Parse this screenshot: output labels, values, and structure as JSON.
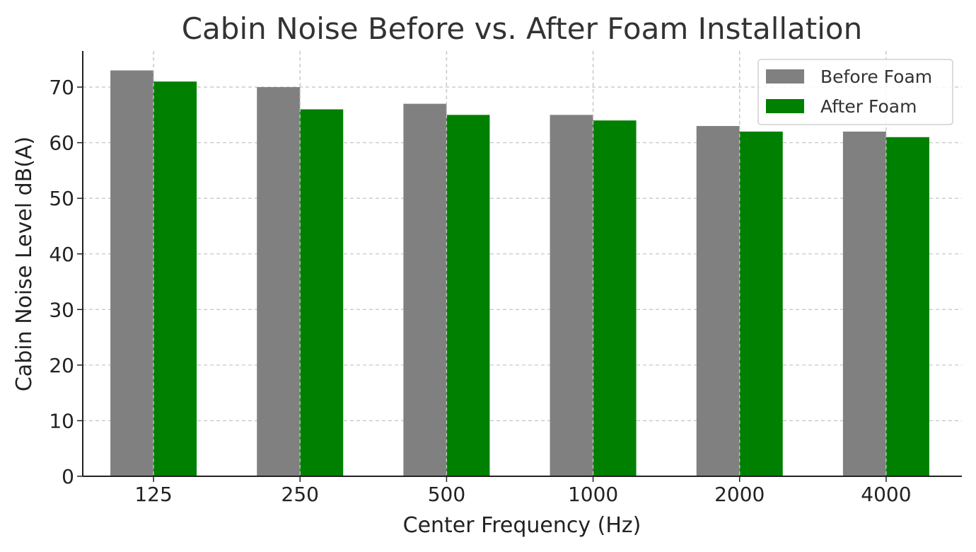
{
  "chart_data": {
    "type": "bar",
    "title": "Cabin Noise Before vs. After Foam Installation",
    "xlabel": "Center Frequency (Hz)",
    "ylabel": "Cabin Noise Level dB(A)",
    "categories": [
      "125",
      "250",
      "500",
      "1000",
      "2000",
      "4000"
    ],
    "series": [
      {
        "name": "Before Foam",
        "color": "#808080",
        "values": [
          73,
          70,
          67,
          65,
          63,
          62
        ]
      },
      {
        "name": "After Foam",
        "color": "#008000",
        "values": [
          71,
          66,
          65,
          64,
          62,
          61
        ]
      }
    ],
    "ylim": [
      0,
      76.5
    ],
    "yticks": [
      0,
      10,
      20,
      30,
      40,
      50,
      60,
      70
    ],
    "grid": true,
    "legend_position": "top-right"
  }
}
